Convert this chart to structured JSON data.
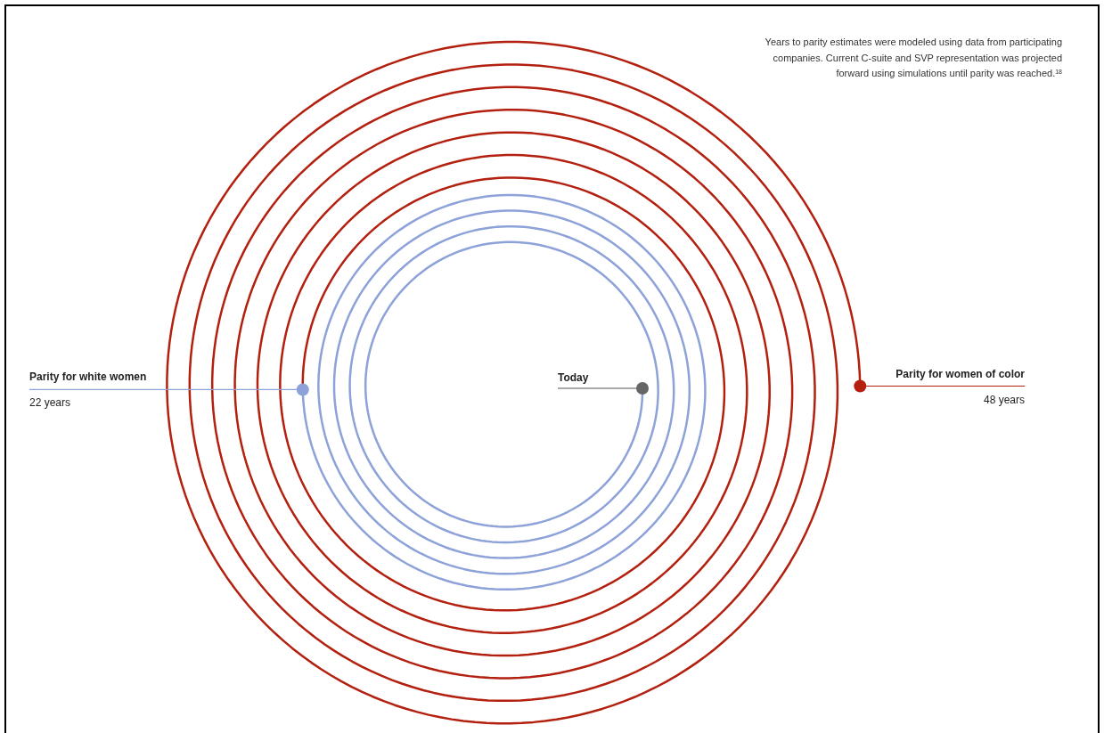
{
  "chart_data": {
    "type": "other",
    "categories": [
      "Parity for white women",
      "Parity for women of color"
    ],
    "values": [
      22,
      48
    ],
    "value_labels": [
      "22 years",
      "48 years"
    ],
    "colors": [
      "#8da2d9",
      "#b3200f"
    ],
    "annotations": [
      "Today",
      "Years to parity estimates were modeled using data from participating\ncompanies. Current C-suite and SVP representation was projected\nforward using simulations until parity was reached.$^{18}$"
    ]
  }
}
